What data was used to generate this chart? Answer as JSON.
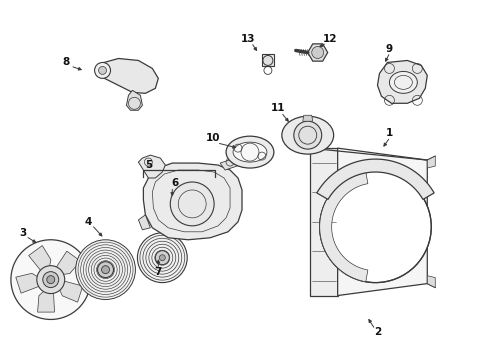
{
  "bg": "#ffffff",
  "line_color": "#3a3a3a",
  "label_color": "#111111",
  "lw": 0.9,
  "labels": [
    [
      "1",
      390,
      133
    ],
    [
      "2",
      378,
      333
    ],
    [
      "3",
      22,
      233
    ],
    [
      "4",
      88,
      222
    ],
    [
      "5",
      148,
      165
    ],
    [
      "6",
      175,
      183
    ],
    [
      "7",
      158,
      272
    ],
    [
      "8",
      65,
      62
    ],
    [
      "9",
      390,
      48
    ],
    [
      "10",
      213,
      138
    ],
    [
      "11",
      278,
      108
    ],
    [
      "12",
      330,
      38
    ],
    [
      "13",
      248,
      38
    ]
  ],
  "arrows": [
    [
      390,
      138,
      383,
      148
    ],
    [
      375,
      329,
      368,
      318
    ],
    [
      26,
      237,
      37,
      244
    ],
    [
      92,
      226,
      103,
      238
    ],
    [
      172,
      188,
      172,
      198
    ],
    [
      158,
      268,
      158,
      258
    ],
    [
      71,
      66,
      83,
      70
    ],
    [
      390,
      53,
      385,
      63
    ],
    [
      218,
      143,
      238,
      148
    ],
    [
      282,
      113,
      290,
      123
    ],
    [
      326,
      43,
      318,
      47
    ],
    [
      252,
      43,
      258,
      52
    ]
  ]
}
